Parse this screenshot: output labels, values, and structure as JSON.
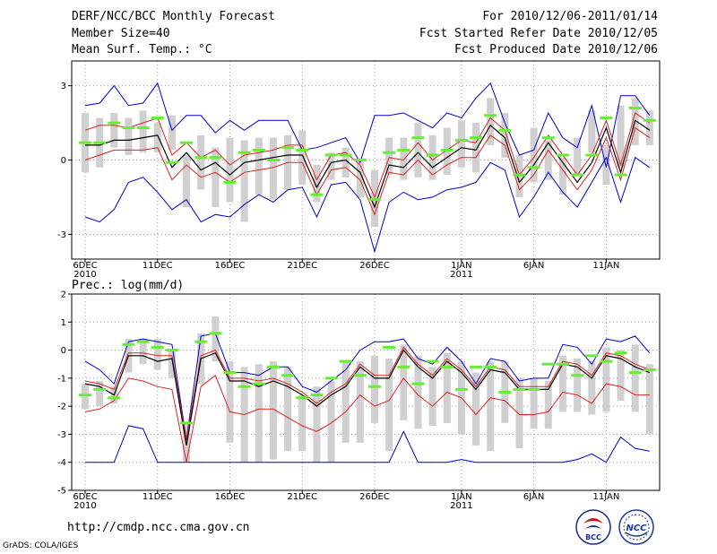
{
  "header": {
    "title": "DERF/NCC/BCC Monthly Forecast",
    "member_size": "Member Size=40",
    "variable": "Mean Surf. Temp.: °C",
    "period": "For 2010/12/06-2011/01/14",
    "started": "Fcst Started Refer Date 2010/12/05",
    "produced": "Fcst Produced Date 2010/12/06"
  },
  "footer": {
    "url": "http://cmdp.ncc.cma.gov.cn",
    "grads": "GrADS: COLA/IGES",
    "logo_left": "BCC",
    "logo_right": "NCC"
  },
  "colors": {
    "box": "#d0d0d0",
    "median": "#66ee33",
    "mean": "#000000",
    "spread": "#dd2222",
    "extreme": "#0000cc",
    "grid": "#999999"
  },
  "chart_data": [
    {
      "type": "line",
      "title": "Mean Surf. Temp.: °C",
      "x": [
        1,
        2,
        3,
        4,
        5,
        6,
        7,
        8,
        9,
        10,
        11,
        12,
        13,
        14,
        15,
        16,
        17,
        18,
        19,
        20,
        21,
        22,
        23,
        24,
        25,
        26,
        27,
        28,
        29,
        30,
        31,
        32,
        33,
        34,
        35,
        36,
        37,
        38,
        39,
        40
      ],
      "x_tick_labels": [
        {
          "label": "6DEC",
          "day": 1,
          "sub": "2010"
        },
        {
          "label": "11DEC",
          "day": 6
        },
        {
          "label": "16DEC",
          "day": 11
        },
        {
          "label": "21DEC",
          "day": 16
        },
        {
          "label": "26DEC",
          "day": 21
        },
        {
          "label": "1JAN",
          "day": 27,
          "sub": "2011"
        },
        {
          "label": "6JAN",
          "day": 32
        },
        {
          "label": "11JAN",
          "day": 37
        }
      ],
      "ylim": [
        -4,
        4
      ],
      "yticks": [
        -3,
        0,
        3
      ],
      "series": [
        {
          "name": "box_high",
          "values": [
            1.9,
            1.7,
            1.9,
            1.7,
            2.0,
            1.5,
            1.8,
            0.2,
            1.0,
            0.5,
            0.9,
            0.8,
            0.9,
            0.9,
            1.0,
            1.2,
            -0.2,
            0.3,
            0.5,
            0.0,
            -0.4,
            0.9,
            0.9,
            1.5,
            1.0,
            1.3,
            1.6,
            1.5,
            2.5,
            1.9,
            0.2,
            1.3,
            0.8,
            0.1,
            0.9,
            2.0,
            0.6,
            2.2,
            2.5,
            2.0
          ]
        },
        {
          "name": "box_low",
          "values": [
            -0.5,
            -0.3,
            0.5,
            0.2,
            0.3,
            0.3,
            0.4,
            -1.9,
            -1.2,
            -1.9,
            -1.7,
            -2.5,
            -1.4,
            -1.6,
            -1.2,
            -1.0,
            -1.7,
            -0.8,
            -0.7,
            -1.5,
            -2.7,
            -0.6,
            -0.8,
            -0.7,
            -0.8,
            -0.6,
            -0.3,
            -0.5,
            0.6,
            0.1,
            -1.5,
            -0.9,
            -0.8,
            -1.4,
            -0.6,
            0.3,
            -1.0,
            -0.3,
            0.6,
            0.6
          ]
        },
        {
          "name": "median",
          "values": [
            0.7,
            0.7,
            1.5,
            1.3,
            1.3,
            1.7,
            -0.1,
            0.7,
            0.1,
            0.1,
            -0.9,
            0.3,
            0.4,
            0.0,
            0.5,
            0.4,
            -1.4,
            0.2,
            0.2,
            0.0,
            -1.6,
            0.3,
            0.4,
            0.9,
            0.2,
            0.4,
            0.8,
            0.9,
            1.8,
            1.2,
            -0.6,
            -0.3,
            0.9,
            0.2,
            -0.6,
            0.2,
            1.7,
            -0.6,
            2.1,
            1.6
          ]
        },
        {
          "name": "mean",
          "values": [
            0.6,
            0.6,
            0.8,
            0.8,
            0.9,
            1.0,
            -0.3,
            0.3,
            -0.4,
            -0.1,
            -0.6,
            -0.1,
            0.0,
            0.1,
            0.2,
            0.2,
            -1.1,
            -0.1,
            0.0,
            -0.5,
            -1.9,
            -0.2,
            -0.3,
            0.3,
            -0.3,
            0.1,
            0.5,
            0.4,
            1.4,
            0.9,
            -0.9,
            -0.2,
            0.7,
            -0.1,
            -0.9,
            -0.1,
            1.3,
            -0.5,
            1.6,
            1.2
          ]
        },
        {
          "name": "spread_high",
          "values": [
            1.2,
            1.4,
            1.4,
            1.3,
            1.5,
            1.7,
            0.2,
            0.7,
            0.1,
            0.4,
            -0.2,
            0.2,
            0.3,
            0.4,
            0.6,
            0.6,
            -0.8,
            0.2,
            0.3,
            -0.2,
            -1.5,
            0.1,
            0.0,
            0.7,
            0.0,
            0.4,
            0.8,
            0.7,
            1.7,
            1.2,
            -0.6,
            0.1,
            1.0,
            0.2,
            -0.6,
            0.2,
            1.6,
            -0.2,
            1.9,
            1.5
          ]
        },
        {
          "name": "spread_low",
          "values": [
            0.0,
            0.2,
            0.4,
            0.4,
            0.4,
            0.5,
            -0.8,
            -0.2,
            -0.7,
            -0.5,
            -0.9,
            -0.5,
            -0.4,
            -0.3,
            -0.1,
            -0.1,
            -1.4,
            -0.4,
            -0.3,
            -0.8,
            -2.2,
            -0.5,
            -0.6,
            0.0,
            -0.6,
            -0.2,
            0.1,
            0.1,
            1.0,
            0.6,
            -1.2,
            -0.6,
            0.4,
            -0.4,
            -1.2,
            -0.4,
            0.9,
            -0.8,
            1.3,
            0.9
          ]
        },
        {
          "name": "max",
          "values": [
            2.2,
            2.3,
            3.0,
            2.2,
            2.3,
            3.1,
            1.2,
            1.8,
            1.8,
            1.1,
            1.6,
            1.2,
            1.6,
            1.6,
            1.6,
            0.4,
            0.5,
            0.7,
            0.9,
            -0.1,
            1.8,
            1.8,
            1.9,
            1.6,
            1.3,
            1.9,
            1.7,
            2.5,
            3.1,
            1.5,
            0.2,
            0.4,
            1.9,
            0.9,
            0.5,
            2.2,
            -0.3,
            2.6,
            2.6,
            1.8
          ]
        },
        {
          "name": "min",
          "values": [
            -2.3,
            -2.5,
            -2.0,
            -0.9,
            -0.7,
            -1.3,
            -2.0,
            -1.6,
            -2.5,
            -2.2,
            -2.3,
            -1.8,
            -1.4,
            -1.7,
            -1.2,
            -1.1,
            -2.3,
            -1.0,
            -0.9,
            -1.6,
            -3.7,
            -1.7,
            -1.3,
            -1.6,
            -1.5,
            -1.2,
            -1.1,
            -0.9,
            -0.1,
            -0.4,
            -2.3,
            -1.5,
            -0.5,
            -1.3,
            -1.9,
            -0.9,
            0.1,
            -1.7,
            0.1,
            -0.3
          ]
        }
      ]
    },
    {
      "type": "line",
      "title": "Prec.: log(mm/d)",
      "x": [
        1,
        2,
        3,
        4,
        5,
        6,
        7,
        8,
        9,
        10,
        11,
        12,
        13,
        14,
        15,
        16,
        17,
        18,
        19,
        20,
        21,
        22,
        23,
        24,
        25,
        26,
        27,
        28,
        29,
        30,
        31,
        32,
        33,
        34,
        35,
        36,
        37,
        38,
        39,
        40
      ],
      "x_tick_labels": [
        {
          "label": "6DEC",
          "day": 1,
          "sub": "2010"
        },
        {
          "label": "11DEC",
          "day": 6
        },
        {
          "label": "16DEC",
          "day": 11
        },
        {
          "label": "21DEC",
          "day": 16
        },
        {
          "label": "26DEC",
          "day": 21
        },
        {
          "label": "1JAN",
          "day": 27,
          "sub": "2011"
        },
        {
          "label": "6JAN",
          "day": 32
        },
        {
          "label": "11JAN",
          "day": 37
        }
      ],
      "ylim": [
        -5,
        2
      ],
      "yticks": [
        -5,
        -4,
        -3,
        -2,
        -1,
        0,
        1,
        2
      ],
      "series": [
        {
          "name": "box_high",
          "values": [
            -1.2,
            -1.1,
            -1.3,
            0.4,
            0.4,
            0.4,
            0.0,
            -2.6,
            0.6,
            1.2,
            -0.4,
            -0.6,
            -0.5,
            -0.4,
            -0.6,
            -1.6,
            -1.3,
            -1.1,
            -0.4,
            -0.4,
            -0.2,
            -0.3,
            0.2,
            -0.2,
            -0.6,
            -0.1,
            -0.4,
            -0.8,
            -0.4,
            -0.4,
            -1.0,
            -1.0,
            -1.1,
            -0.2,
            -0.3,
            -0.4,
            0.1,
            0.0,
            0.2,
            -0.5
          ]
        },
        {
          "name": "box_low",
          "values": [
            -2.1,
            -2.0,
            -1.9,
            -0.8,
            -0.5,
            -0.7,
            -1.0,
            -4.0,
            -1.2,
            -0.4,
            -3.3,
            -4.0,
            -4.0,
            -3.9,
            -3.6,
            -3.6,
            -4.0,
            -4.0,
            -3.3,
            -3.3,
            -2.6,
            -3.6,
            -2.5,
            -2.8,
            -2.7,
            -2.6,
            -3.0,
            -3.4,
            -3.6,
            -2.6,
            -3.5,
            -2.8,
            -2.8,
            -2.2,
            -2.2,
            -2.3,
            -2.2,
            -1.8,
            -2.2,
            -3.0
          ]
        },
        {
          "name": "median",
          "values": [
            -1.6,
            -1.4,
            -1.7,
            0.2,
            0.3,
            0.1,
            0.0,
            -2.6,
            0.3,
            0.6,
            -0.8,
            -1.3,
            -1.2,
            -0.6,
            -0.9,
            -1.7,
            -1.6,
            -1.0,
            -0.4,
            -0.9,
            -1.3,
            0.1,
            -0.6,
            -1.2,
            -0.4,
            -0.6,
            -1.4,
            -0.6,
            -0.6,
            -1.5,
            -1.4,
            -1.4,
            -0.5,
            -0.5,
            -0.9,
            -0.2,
            -0.4,
            -0.1,
            -0.8,
            -0.7
          ]
        },
        {
          "name": "mean",
          "values": [
            -1.2,
            -1.3,
            -1.6,
            -0.2,
            -0.2,
            -0.4,
            -0.3,
            -3.4,
            -0.3,
            -0.1,
            -1.1,
            -1.1,
            -1.3,
            -1.1,
            -1.3,
            -1.6,
            -2.0,
            -1.6,
            -1.3,
            -0.6,
            -1.0,
            -1.0,
            0.0,
            -0.6,
            -1.0,
            -0.4,
            -0.8,
            -1.4,
            -0.7,
            -0.8,
            -1.4,
            -1.4,
            -1.4,
            -0.5,
            -0.6,
            -1.0,
            -0.2,
            -0.3,
            -0.6,
            -0.8
          ]
        },
        {
          "name": "spread_high",
          "values": [
            -1.1,
            -1.2,
            -1.4,
            -0.1,
            -0.1,
            -0.2,
            -0.2,
            -3.2,
            -0.2,
            0.0,
            -1.0,
            -1.0,
            -1.1,
            -1.0,
            -1.2,
            -1.5,
            -1.9,
            -1.5,
            -1.2,
            -0.5,
            -0.9,
            -0.9,
            0.1,
            -0.5,
            -0.9,
            -0.3,
            -0.7,
            -1.3,
            -0.6,
            -0.7,
            -1.3,
            -1.3,
            -1.3,
            -0.4,
            -0.5,
            -0.9,
            -0.1,
            -0.2,
            -0.5,
            -0.7
          ]
        },
        {
          "name": "spread_low",
          "values": [
            -2.2,
            -2.1,
            -1.8,
            -1.0,
            -1.1,
            -1.3,
            -1.4,
            -4.0,
            -1.3,
            -0.9,
            -2.2,
            -2.3,
            -2.1,
            -2.1,
            -2.4,
            -2.7,
            -2.9,
            -2.6,
            -2.2,
            -1.6,
            -2.0,
            -1.8,
            -1.0,
            -1.6,
            -2.0,
            -1.5,
            -1.7,
            -2.3,
            -1.7,
            -1.8,
            -2.3,
            -2.3,
            -2.2,
            -1.5,
            -1.6,
            -1.9,
            -1.2,
            -1.3,
            -1.6,
            -1.6
          ]
        },
        {
          "name": "max",
          "values": [
            -0.4,
            -0.7,
            -1.2,
            0.3,
            0.4,
            0.3,
            0.2,
            -3.2,
            0.5,
            0.6,
            -0.8,
            -0.8,
            -0.9,
            -0.6,
            -0.6,
            -1.3,
            -1.5,
            -1.1,
            -0.7,
            0.0,
            0.3,
            0.3,
            0.4,
            -0.3,
            -0.5,
            0.1,
            -0.4,
            -1.2,
            -0.3,
            -0.4,
            -1.1,
            -1.0,
            -1.0,
            0.2,
            0.1,
            -0.5,
            0.4,
            0.3,
            0.5,
            -0.1
          ]
        },
        {
          "name": "min",
          "values": [
            -4.0,
            -4.0,
            -4.0,
            -2.7,
            -2.8,
            -4.0,
            -4.0,
            -4.0,
            -4.0,
            -4.0,
            -4.0,
            -4.0,
            -4.0,
            -4.0,
            -4.0,
            -4.0,
            -4.0,
            -4.0,
            -4.0,
            -4.0,
            -4.0,
            -4.0,
            -2.9,
            -4.0,
            -4.0,
            -4.0,
            -3.9,
            -4.0,
            -4.0,
            -4.0,
            -4.0,
            -4.0,
            -4.0,
            -4.0,
            -3.9,
            -3.7,
            -4.0,
            -3.1,
            -3.5,
            -3.6
          ]
        }
      ]
    }
  ]
}
